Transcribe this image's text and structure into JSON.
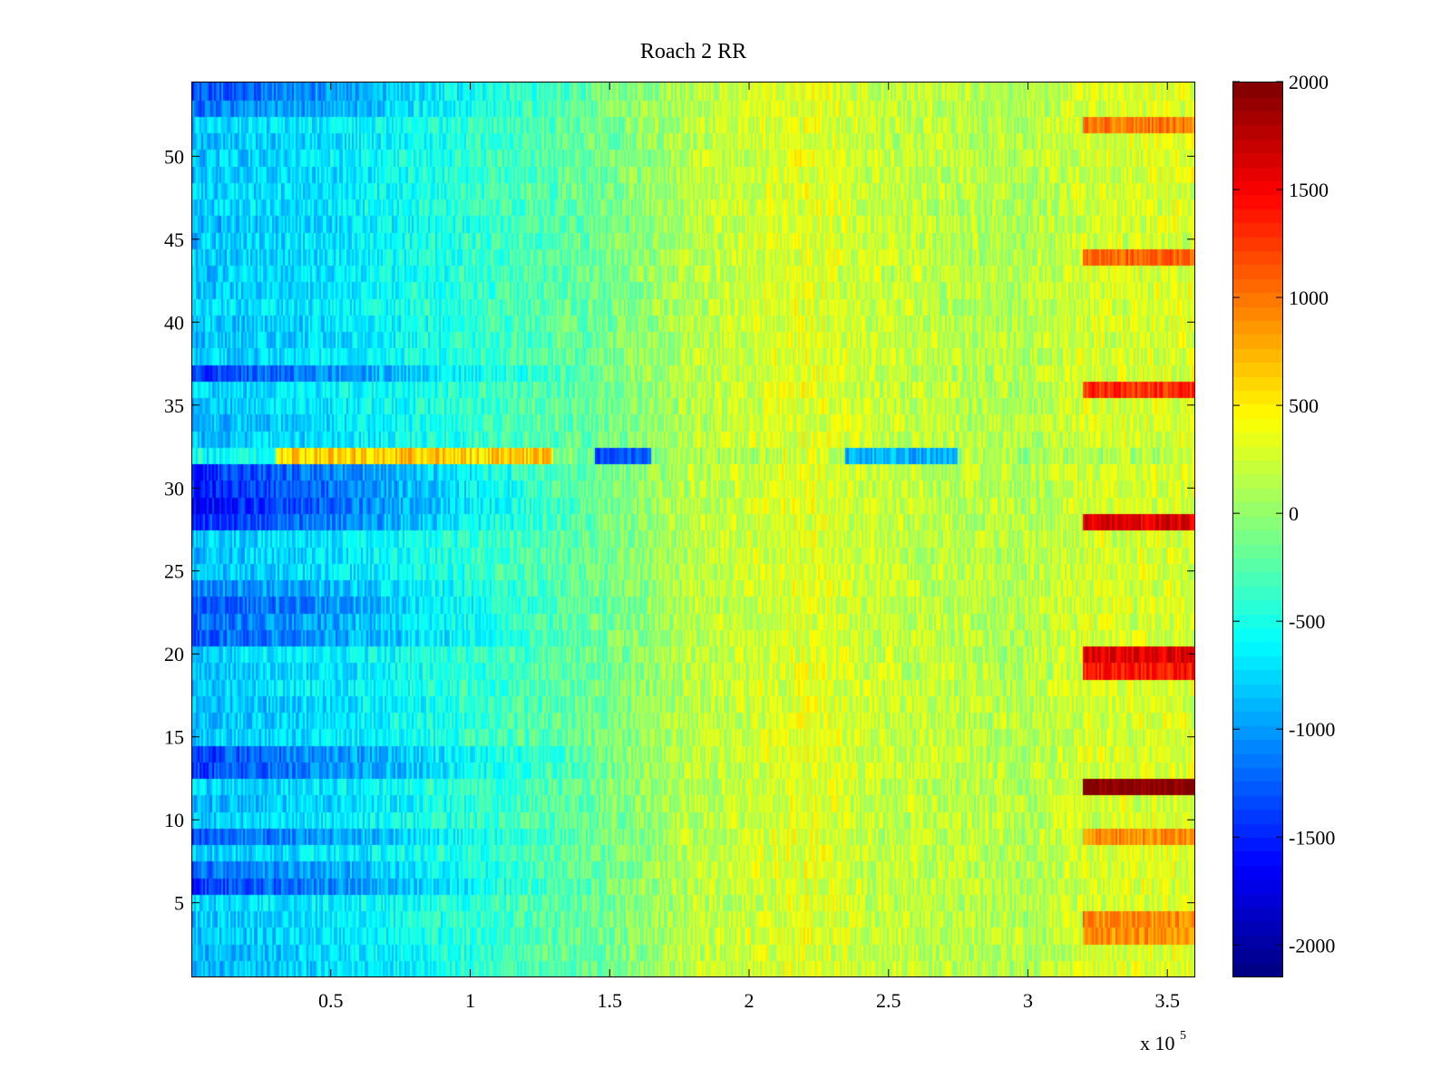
{
  "chart_data": {
    "type": "heatmap",
    "title": "Roach 2 RR",
    "xlabel": "",
    "ylabel": "",
    "x_multiplier_label": "x 10",
    "x_multiplier_exponent": "5",
    "x_range": [
      0,
      360000
    ],
    "y_range": [
      0.5,
      54.5
    ],
    "x_ticks": [
      50000,
      100000,
      150000,
      200000,
      250000,
      300000,
      350000
    ],
    "x_tick_labels": [
      "0.5",
      "1",
      "1.5",
      "2",
      "2.5",
      "3",
      "3.5"
    ],
    "y_ticks": [
      5,
      10,
      15,
      20,
      25,
      30,
      35,
      40,
      45,
      50
    ],
    "y_tick_labels": [
      "5",
      "10",
      "15",
      "20",
      "25",
      "30",
      "35",
      "40",
      "45",
      "50"
    ],
    "colormap": "jet",
    "clim": [
      -2150,
      2000
    ],
    "colorbar_ticks": [
      2000,
      1500,
      1000,
      500,
      0,
      -500,
      -1000,
      -1500,
      -2000
    ],
    "colorbar_tick_labels": [
      "2000",
      "1500",
      "1000",
      "500",
      "0",
      "-500",
      "-1000",
      "-1500",
      "-2000"
    ],
    "grid": false,
    "trend": {
      "description": "Values rise from left to right; a warm (orange) band peaks near x = 2.2e5; rows appear as horizontal stripes.",
      "x_knots": [
        0,
        50000,
        100000,
        150000,
        180000,
        220000,
        250000,
        300000,
        320000,
        360000
      ],
      "y_knots": [
        -850,
        -700,
        -420,
        -120,
        160,
        330,
        200,
        120,
        260,
        300
      ]
    },
    "row_offsets": {
      "rows": [
        54,
        53,
        37,
        31,
        30,
        29,
        28,
        24,
        23,
        22,
        21,
        14,
        13,
        9,
        7,
        6,
        2,
        1
      ],
      "offsets_at_low_x": [
        -500,
        -350,
        -450,
        -600,
        -750,
        -700,
        -550,
        -250,
        -450,
        -400,
        -500,
        -450,
        -600,
        -450,
        -350,
        -500,
        0,
        0
      ]
    },
    "special_row": {
      "row": 32,
      "note": "irregular row: orange segments near x=0.3e5-1.3e5, blue at x~1.5e5 and x~2.4e5-2.7e5"
    },
    "late_hot_rows": {
      "x_start": 320000,
      "rows": [
        52,
        44,
        36,
        28,
        20,
        19,
        12,
        9,
        4,
        3
      ],
      "values": [
        1000,
        1100,
        1300,
        1600,
        1600,
        1400,
        2000,
        900,
        900,
        900
      ]
    }
  }
}
